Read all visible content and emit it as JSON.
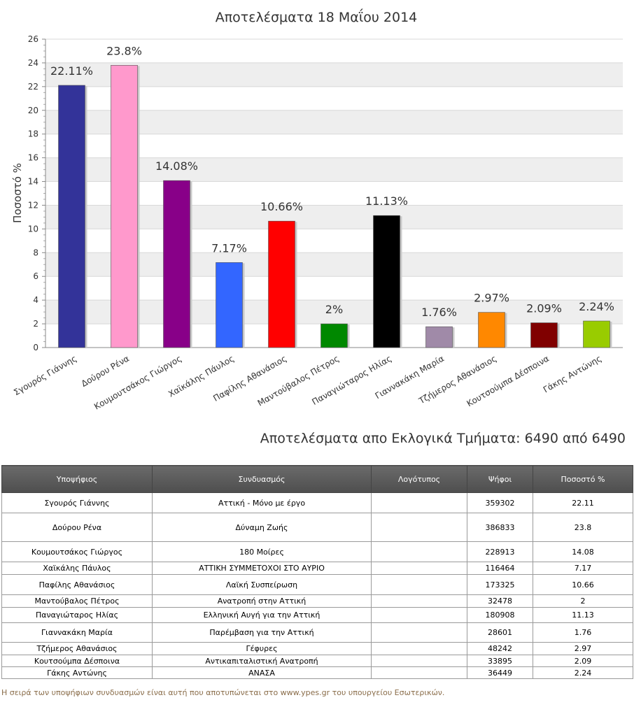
{
  "chart_data": {
    "type": "bar",
    "title": "Αποτελέσματα 18 Μαΐου 2014",
    "ylabel": "Ποσοστό %",
    "xlabel": "",
    "ylim": [
      0,
      26
    ],
    "yticks": [
      0,
      2,
      4,
      6,
      8,
      10,
      12,
      14,
      16,
      18,
      20,
      22,
      24,
      26
    ],
    "grid": true,
    "categories": [
      "Σγουρός Γιάννης",
      "Δούρου Ρένα",
      "Κουμουτσάκος Γιώργος",
      "Χαϊκάλης Πάυλος",
      "Παφίλης Αθανάσιος",
      "Μαντούβαλος Πέτρος",
      "Παναγιώταρος Ηλίας",
      "Γιαννακάκη Μαρία",
      "Τζήμερος Αθανάσιος",
      "Κουτσούμπα Δέσποινα",
      "Γάκης Αντώνης"
    ],
    "values": [
      22.11,
      23.8,
      14.08,
      7.17,
      10.66,
      2,
      11.13,
      1.76,
      2.97,
      2.09,
      2.24
    ],
    "data_labels": [
      "22.11%",
      "23.8%",
      "14.08%",
      "7.17%",
      "10.66%",
      "2%",
      "11.13%",
      "1.76%",
      "2.97%",
      "2.09%",
      "2.24%"
    ],
    "colors": [
      "#333399",
      "#ff99cc",
      "#880088",
      "#3366ff",
      "#ff0000",
      "#008800",
      "#000000",
      "#a08aa8",
      "#ff8800",
      "#800000",
      "#99cc00"
    ]
  },
  "districts_text": "Αποτελέσματα απο Εκλογικά Τμήματα: 6490 από 6490",
  "table": {
    "headers": [
      "Υποψήφιος",
      "Συνδυασμός",
      "Λογότυπος",
      "Ψήφοι",
      "Ποσοστό %"
    ],
    "rows": [
      {
        "candidate": "Σγουρός Γιάννης",
        "combination": "Αττική - Μόνο με έργο",
        "votes": "359302",
        "percent": "22.11",
        "logo_color": "#1a66c8"
      },
      {
        "candidate": "Δούρου Ρένα",
        "combination": "Δύναμη Ζωής",
        "votes": "386833",
        "percent": "23.8",
        "logo_color": "#d4202a"
      },
      {
        "candidate": "Κουμουτσάκος Γιώργος",
        "combination": "180 Μοίρες",
        "votes": "228913",
        "percent": "14.08",
        "logo_color": "#2255bb"
      },
      {
        "candidate": "Χαϊκάλης Πάυλος",
        "combination": "ΑΤΤΙΚΗ ΣΥΜΜΕΤΟΧΟΙ ΣΤΟ ΑΥΡΙΟ",
        "votes": "116464",
        "percent": "7.17",
        "logo_color": "#e0a020"
      },
      {
        "candidate": "Παφίλης Αθανάσιος",
        "combination": "Λαϊκή Συσπείρωση",
        "votes": "173325",
        "percent": "10.66",
        "logo_color": "#cc1111"
      },
      {
        "candidate": "Μαντούβαλος Πέτρος",
        "combination": "Ανατροπή στην Αττική",
        "votes": "32478",
        "percent": "2",
        "logo_color": "#1a3a8a"
      },
      {
        "candidate": "Παναγιώταρος Ηλίας",
        "combination": "Ελληνική Αυγή για την Αττική",
        "votes": "180908",
        "percent": "11.13",
        "logo_color": "#2a6fb0"
      },
      {
        "candidate": "Γιαννακάκη Μαρία",
        "combination": "Παρέμβαση για την Αττική",
        "votes": "28601",
        "percent": "1.76",
        "logo_color": "#c87a3a"
      },
      {
        "candidate": "Τζήμερος Αθανάσιος",
        "combination": "Γέφυρες",
        "votes": "48242",
        "percent": "2.97",
        "logo_color": "#e07020"
      },
      {
        "candidate": "Κουτσούμπα Δέσποινα",
        "combination": "Αντικαπιταλιστική Ανατροπή",
        "votes": "33895",
        "percent": "2.09",
        "logo_color": "#cc2222"
      },
      {
        "candidate": "Γάκης Αντώνης",
        "combination": "ΑΝΑΣΑ",
        "votes": "36449",
        "percent": "2.24",
        "logo_color": "#3388cc"
      }
    ]
  },
  "footnote": "Η σειρά των υποψήφιων συνδυασμών είναι αυτή που αποτυπώνεται στο www.ypes.gr του υπουργείου Εσωτερικών."
}
